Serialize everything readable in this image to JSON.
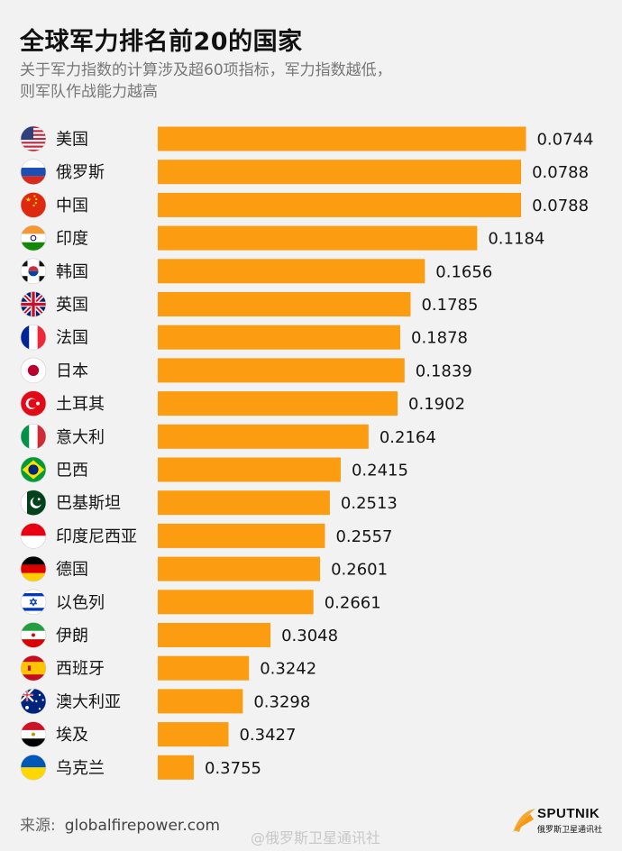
{
  "header": {
    "title": "全球军力排名前20的国家",
    "subtitle_line1": "关于军力指数的计算涉及超60项指标，军力指数越低，",
    "subtitle_line2": "则军队作战能力越高"
  },
  "footer": {
    "source_prefix": "来源:",
    "source_url": "globalfirepower.com",
    "logo_name": "SPUTNIK",
    "logo_subtitle": "俄罗斯卫星通讯社",
    "watermark": "@俄罗斯卫星通讯社"
  },
  "chart_data": {
    "type": "bar",
    "orientation": "horizontal",
    "title": "全球军力排名前20的国家",
    "categories": [
      "美国",
      "俄罗斯",
      "中国",
      "印度",
      "韩国",
      "英国",
      "法国",
      "日本",
      "土耳其",
      "意大利",
      "巴西",
      "巴基斯坦",
      "印度尼西亚",
      "德国",
      "以色列",
      "伊朗",
      "西班牙",
      "澳大利亚",
      "埃及",
      "乌克兰"
    ],
    "values": [
      0.0744,
      0.0788,
      0.0788,
      0.1184,
      0.1656,
      0.1785,
      0.1878,
      0.1839,
      0.1902,
      0.2164,
      0.2415,
      0.2513,
      0.2557,
      0.2601,
      0.2661,
      0.3048,
      0.3242,
      0.3298,
      0.3427,
      0.3755
    ],
    "value_labels": [
      "0.0744",
      "0.0788",
      "0.0788",
      "0.1184",
      "0.1656",
      "0.1785",
      "0.1878",
      "0.1839",
      "0.1902",
      "0.2164",
      "0.2415",
      "0.2513",
      "0.2557",
      "0.2601",
      "0.2661",
      "0.3048",
      "0.3242",
      "0.3298",
      "0.3427",
      "0.3755"
    ],
    "flags": [
      "us-flag-icon",
      "russia-flag-icon",
      "china-flag-icon",
      "india-flag-icon",
      "south-korea-flag-icon",
      "uk-flag-icon",
      "france-flag-icon",
      "japan-flag-icon",
      "turkey-flag-icon",
      "italy-flag-icon",
      "brazil-flag-icon",
      "pakistan-flag-icon",
      "indonesia-flag-icon",
      "germany-flag-icon",
      "israel-flag-icon",
      "iran-flag-icon",
      "spain-flag-icon",
      "australia-flag-icon",
      "egypt-flag-icon",
      "ukraine-flag-icon"
    ],
    "bar_color": "#fb9c11",
    "xlabel": "",
    "ylabel": "",
    "grid": false,
    "legend": "none"
  }
}
